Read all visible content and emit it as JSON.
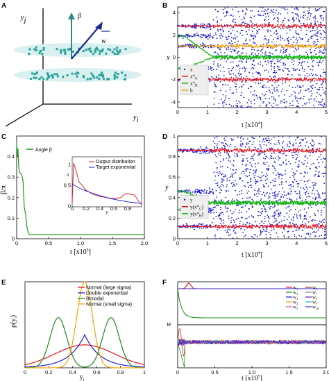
{
  "panels": {
    "A": {
      "label": "A",
      "axis_x": "y",
      "axis_x_sub": "i",
      "axis_y": "y",
      "axis_y_sub": "j",
      "beta": "β",
      "w": "w",
      "colors": {
        "cluster": "#2aa198",
        "arrow_beta": "#2a8a8a",
        "arrow_w": "#1a2a8a",
        "disk": "#d8f0ef"
      }
    }
  },
  "chart_data": [
    {
      "id": "B",
      "label": "B",
      "type": "scatter",
      "xlabel": "t [x10",
      "xlabel_sup": "4",
      "xlabel_end": "]",
      "ylabel": "x",
      "xlim": [
        0,
        5
      ],
      "ylim": [
        -4.5,
        4.5
      ],
      "xticks": [
        "0",
        "1",
        "2",
        "3",
        "4",
        "5"
      ],
      "yticks": [
        "-4",
        "-2",
        "0",
        "2",
        "4"
      ],
      "transition_x": 1.2,
      "bands": [
        {
          "series": "x*G",
          "color": "#e8131b",
          "level": 2.8,
          "start": 2.8
        },
        {
          "series": "x*G",
          "color": "#e8131b",
          "level": -2.0,
          "start": -2.0
        },
        {
          "series": "b",
          "color": "#f5a300",
          "level": 1.0,
          "start": 1.0
        },
        {
          "series": "x*H",
          "color": "#13b413",
          "level": 0.0,
          "start": -1.0
        },
        {
          "series": "x*H",
          "color": "#13b413",
          "level": 0.0,
          "start": 1.9
        }
      ],
      "legend": [
        {
          "name": "x",
          "sub": "",
          "color": "#1b1bd8",
          "marker": "dot"
        },
        {
          "name": "x*",
          "sub": "G",
          "color": "#e8131b",
          "marker": "line"
        },
        {
          "name": "x*",
          "sub": "H",
          "color": "#13b413",
          "marker": "line"
        },
        {
          "name": "b",
          "sub": "",
          "color": "#f5a300",
          "marker": "line"
        }
      ]
    },
    {
      "id": "C",
      "label": "C",
      "type": "line",
      "xlabel": "t [x10",
      "xlabel_sup": "5",
      "xlabel_end": "]",
      "ylabel": "β/π",
      "xlim": [
        0,
        2.0
      ],
      "ylim": [
        0,
        0.5
      ],
      "xticks": [
        "0",
        "0.5",
        "1.0",
        "1.5",
        "2.0"
      ],
      "yticks": [
        "0",
        "0.1",
        "0.2",
        "0.3",
        "0.4"
      ],
      "series": [
        {
          "name": "Angle β",
          "color": "#1a9a1a",
          "x": [
            0,
            0.01,
            0.02,
            0.03,
            0.04,
            0.05,
            0.06,
            0.08,
            0.1,
            0.12,
            0.14,
            0.16,
            0.18,
            0.2,
            0.25,
            0.3,
            0.5,
            1.0,
            1.5,
            2.0
          ],
          "y": [
            0.47,
            0.4,
            0.44,
            0.36,
            0.33,
            0.32,
            0.32,
            0.31,
            0.28,
            0.15,
            0.12,
            0.06,
            0.03,
            0.02,
            0.02,
            0.02,
            0.02,
            0.02,
            0.02,
            0.02
          ]
        }
      ],
      "inset": {
        "xlabel": "y",
        "ylabel": "π",
        "xticks": [
          "0",
          "0.2",
          "0.4",
          "0.6",
          "0.8"
        ],
        "yticks": [
          "0",
          "0.5",
          "1"
        ],
        "xlim": [
          0,
          1
        ],
        "ylim": [
          0,
          1.2
        ],
        "series": [
          {
            "name": "Output distribution",
            "color": "#e8131b",
            "x": [
              0,
              0.02,
              0.05,
              0.1,
              0.2,
              0.3,
              0.4,
              0.5,
              0.6,
              0.7,
              0.75,
              0.8,
              0.85,
              0.9,
              0.95,
              1.0
            ],
            "y": [
              0.1,
              1.05,
              0.9,
              0.6,
              0.4,
              0.3,
              0.25,
              0.22,
              0.2,
              0.22,
              0.3,
              0.32,
              0.3,
              0.28,
              0.15,
              0.05
            ]
          },
          {
            "name": "Target exponential",
            "color": "#1b1bd8",
            "x": [
              0,
              0.1,
              0.2,
              0.3,
              0.4,
              0.5,
              0.6,
              0.7,
              0.8,
              0.9,
              1.0
            ],
            "y": [
              0.55,
              0.45,
              0.38,
              0.32,
              0.27,
              0.22,
              0.18,
              0.15,
              0.12,
              0.1,
              0.08
            ]
          }
        ]
      }
    },
    {
      "id": "D",
      "label": "D",
      "type": "scatter",
      "xlabel": "t [x10",
      "xlabel_sup": "4",
      "xlabel_end": "]",
      "ylabel": "y",
      "xlim": [
        0,
        5
      ],
      "ylim": [
        0,
        1
      ],
      "xticks": [
        "0",
        "1",
        "2",
        "3",
        "4",
        "5"
      ],
      "yticks": [
        "0",
        "0.2",
        "0.4",
        "0.6",
        "0.8",
        "1"
      ],
      "transition_x": 1.2,
      "bands": [
        {
          "series": "y(x*G)",
          "color": "#e8131b",
          "level": 0.86,
          "start": 0.86
        },
        {
          "series": "y(x*G)",
          "color": "#e8131b",
          "level": 0.12,
          "start": 0.12
        },
        {
          "series": "y(x*H)",
          "color": "#13b413",
          "level": 0.35,
          "start": 0.28
        },
        {
          "series": "y(x*H)",
          "color": "#13b413",
          "level": 0.35,
          "start": 0.46
        }
      ],
      "legend": [
        {
          "name": "y",
          "sub": "",
          "color": "#1b1bd8",
          "marker": "dot"
        },
        {
          "name": "y(x*",
          "sub": "G",
          "color": "#e8131b",
          "marker": "line"
        },
        {
          "name": "y(x*",
          "sub": "H",
          "color": "#13b413",
          "marker": "line"
        }
      ]
    },
    {
      "id": "E",
      "label": "E",
      "type": "line",
      "xlabel": "y",
      "xlabel_sub": "i",
      "ylabel": "ρ(y",
      "ylabel_sub": "i",
      "xlim": [
        0,
        1
      ],
      "ylim": [
        0,
        6
      ],
      "xticks": [
        "0",
        "0.2",
        "0.4",
        "0.6",
        "0.8",
        "1"
      ],
      "series": [
        {
          "name": "Normal (large sigma)",
          "color": "#e8131b",
          "kind": "normal",
          "mu": 0.5,
          "sigma": 0.25,
          "peak": 1.6
        },
        {
          "name": "Double exponential",
          "color": "#1b1bd8",
          "kind": "laplace",
          "mu": 0.5,
          "b": 0.13,
          "peak": 2.3
        },
        {
          "name": "Bimodal",
          "color": "#1a8a1a",
          "kind": "bimodal",
          "mu1": 0.28,
          "mu2": 0.72,
          "sigma": 0.07,
          "peak": 3.5
        },
        {
          "name": "Normal (small sigma)",
          "color": "#f5a300",
          "kind": "normal",
          "mu": 0.5,
          "sigma": 0.065,
          "peak": 6.0
        }
      ]
    },
    {
      "id": "F",
      "label": "F",
      "type": "line",
      "xlabel": "t [x10",
      "xlabel_sup": "5",
      "xlabel_end": "]",
      "ylabel": "w",
      "xlim": [
        0,
        2.0
      ],
      "xticks": [
        "0",
        "0.5",
        "1.0",
        "1.5",
        "2.0"
      ],
      "legend": [
        {
          "name": "w",
          "sub": "1",
          "color": "#e8131b"
        },
        {
          "name": "w",
          "sub": "6",
          "color": "#8b3a1a"
        },
        {
          "name": "w",
          "sub": "2",
          "color": "#1a9a1a"
        },
        {
          "name": "w",
          "sub": "7",
          "color": "#888888"
        },
        {
          "name": "w",
          "sub": "3",
          "color": "#1b1bd8"
        },
        {
          "name": "w",
          "sub": "8",
          "color": "#6a1ab4"
        },
        {
          "name": "w",
          "sub": "4",
          "color": "#f5a300"
        },
        {
          "name": "w",
          "sub": "9",
          "color": "#12b8d8"
        },
        {
          "name": "w",
          "sub": "5",
          "color": "#d43ad4"
        },
        {
          "name": "w",
          "sub": "10",
          "color": "#3a1ab4"
        }
      ]
    }
  ]
}
